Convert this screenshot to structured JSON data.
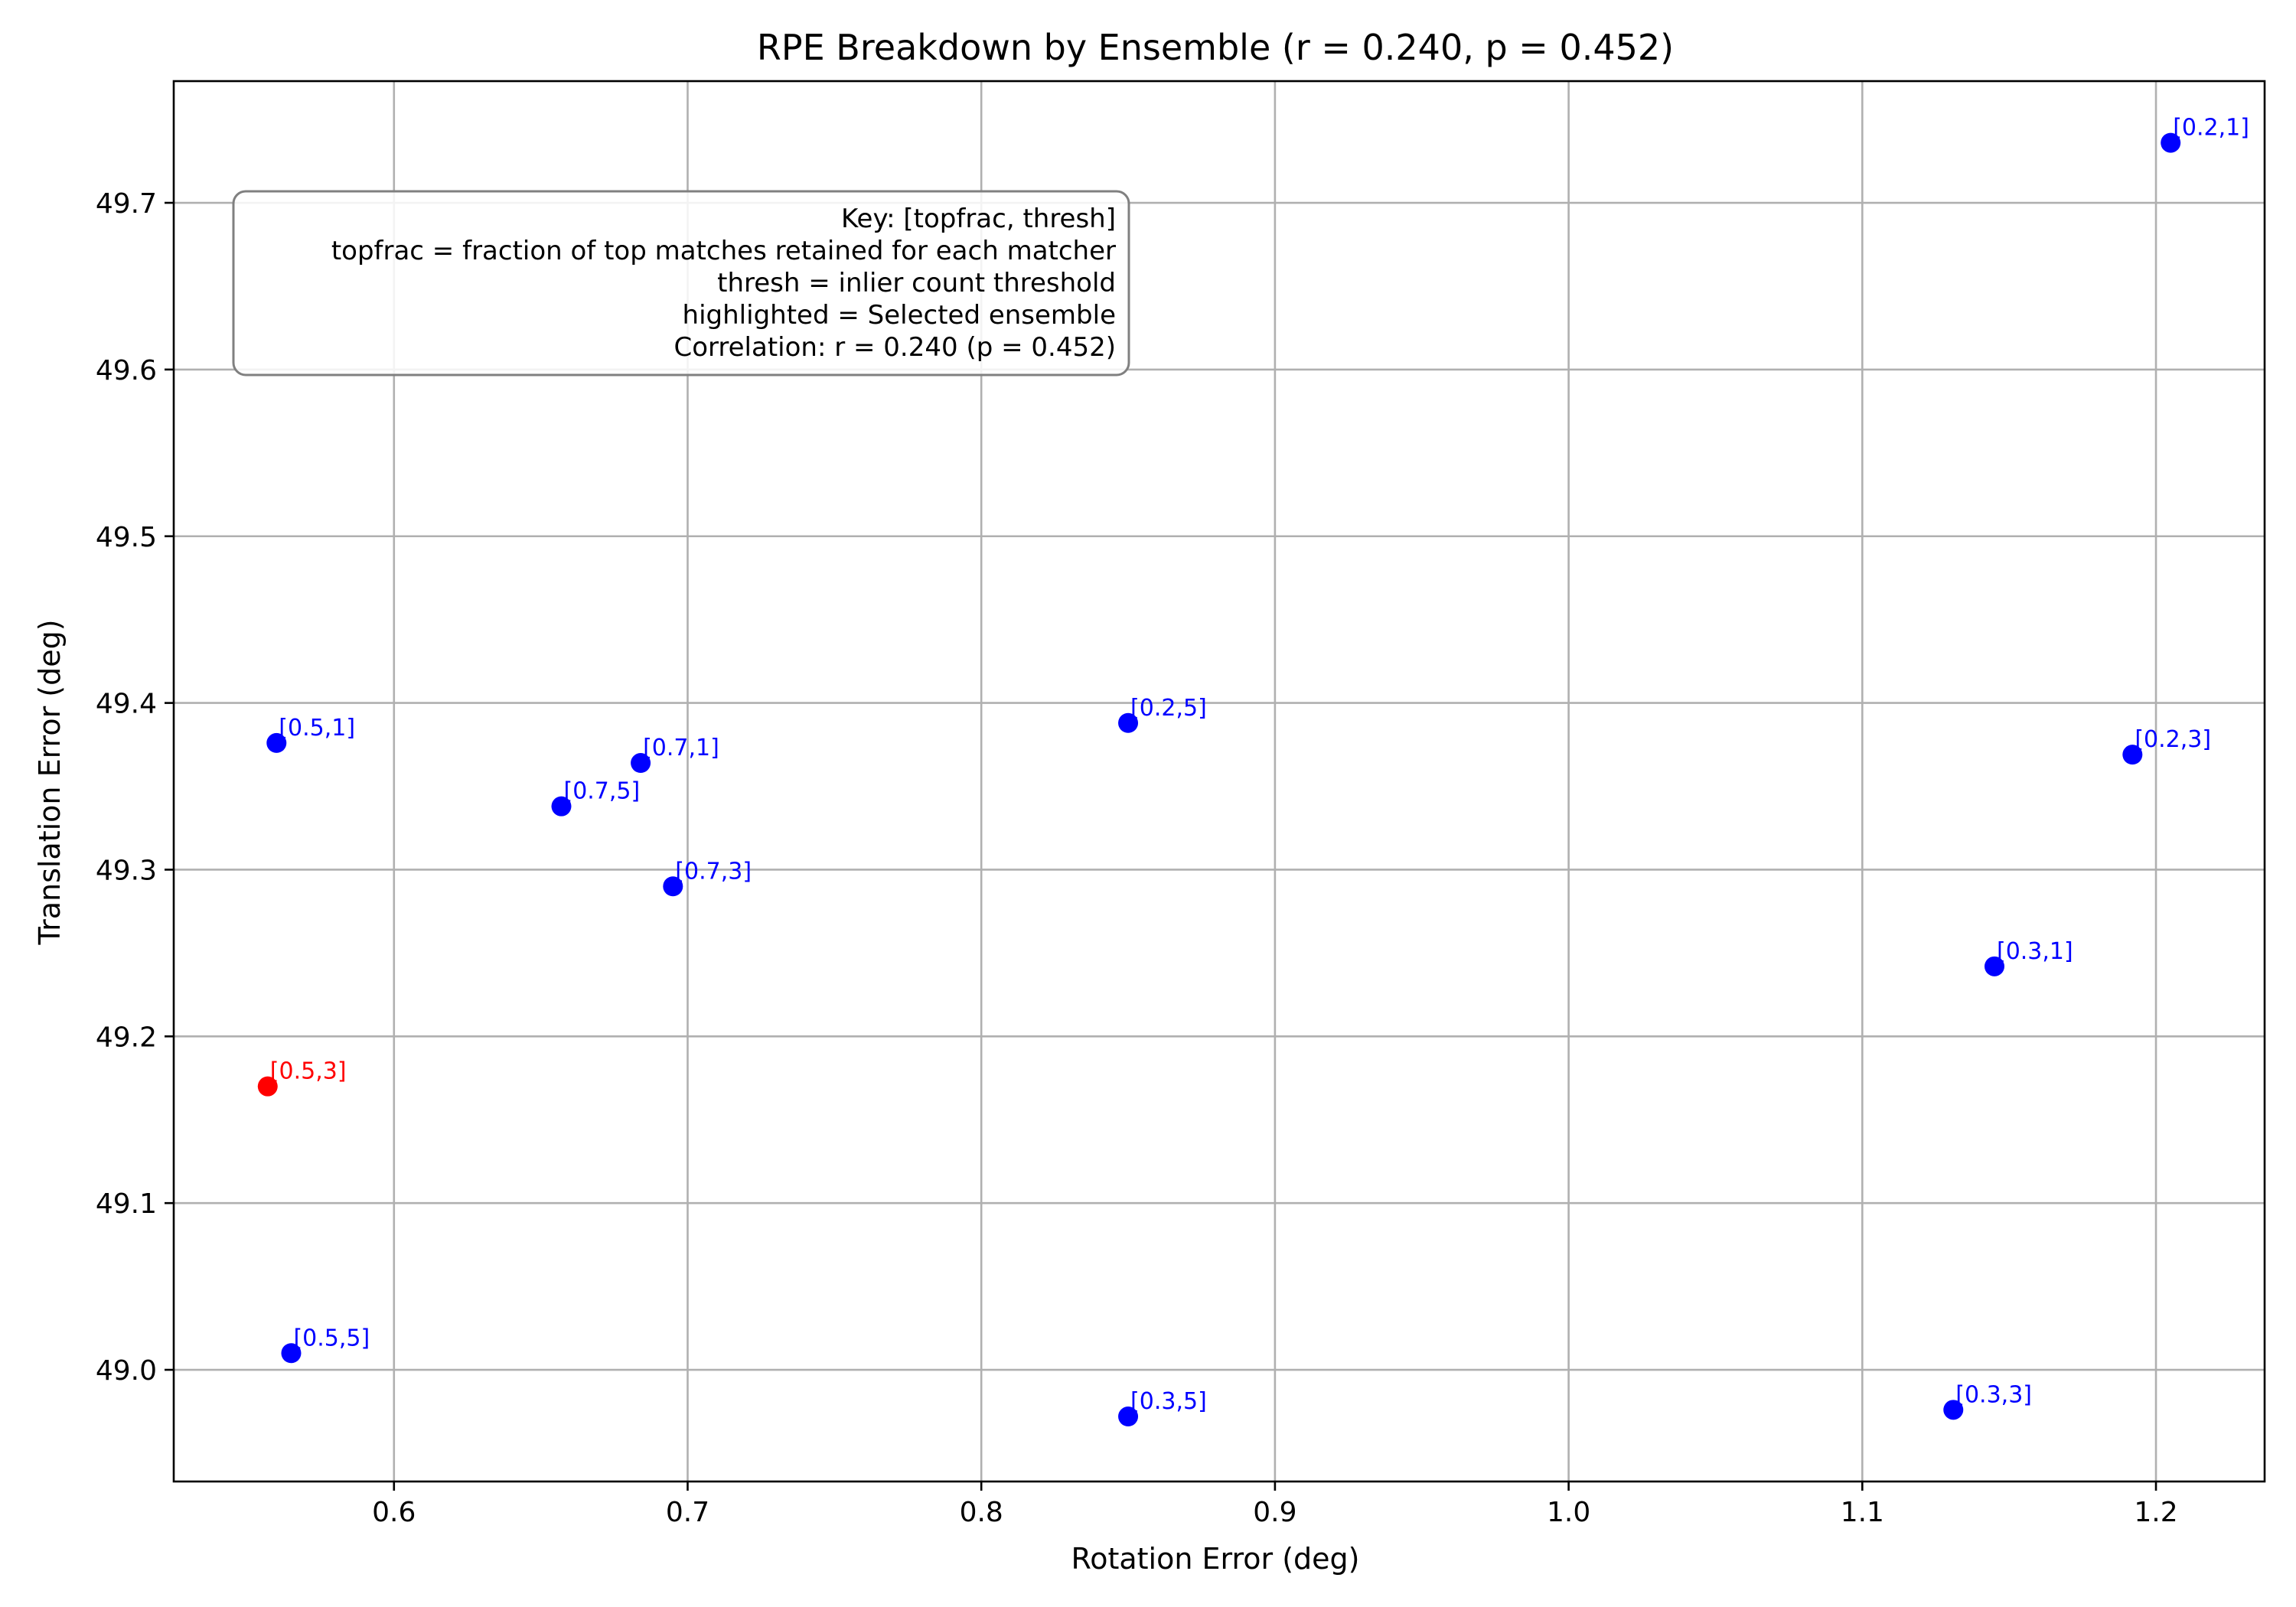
{
  "chart_data": {
    "type": "scatter",
    "title": "RPE Breakdown by Ensemble (r = 0.240, p = 0.452)",
    "xlabel": "Rotation Error (deg)",
    "ylabel": "Translation Error (deg)",
    "xlim": [
      0.525,
      1.237
    ],
    "ylim": [
      48.933,
      49.773
    ],
    "xticks": [
      0.6,
      0.7,
      0.8,
      0.9,
      1.0,
      1.1,
      1.2
    ],
    "yticks": [
      49.0,
      49.1,
      49.2,
      49.3,
      49.4,
      49.5,
      49.6,
      49.7
    ],
    "xtick_labels": [
      "0.6",
      "0.7",
      "0.8",
      "0.9",
      "1.0",
      "1.1",
      "1.2"
    ],
    "ytick_labels": [
      "49.0",
      "49.1",
      "49.2",
      "49.3",
      "49.4",
      "49.5",
      "49.6",
      "49.7"
    ],
    "grid": true,
    "points": [
      {
        "label": "[0.2,1]",
        "x": 1.205,
        "y": 49.736,
        "highlighted": false
      },
      {
        "label": "[0.5,1]",
        "x": 0.56,
        "y": 49.376,
        "highlighted": false
      },
      {
        "label": "[0.7,1]",
        "x": 0.684,
        "y": 49.364,
        "highlighted": false
      },
      {
        "label": "[0.2,5]",
        "x": 0.85,
        "y": 49.388,
        "highlighted": false
      },
      {
        "label": "[0.2,3]",
        "x": 1.192,
        "y": 49.369,
        "highlighted": false
      },
      {
        "label": "[0.7,5]",
        "x": 0.657,
        "y": 49.338,
        "highlighted": false
      },
      {
        "label": "[0.7,3]",
        "x": 0.695,
        "y": 49.29,
        "highlighted": false
      },
      {
        "label": "[0.3,1]",
        "x": 1.145,
        "y": 49.242,
        "highlighted": false
      },
      {
        "label": "[0.5,3]",
        "x": 0.557,
        "y": 49.17,
        "highlighted": true
      },
      {
        "label": "[0.5,5]",
        "x": 0.565,
        "y": 49.01,
        "highlighted": false
      },
      {
        "label": "[0.3,5]",
        "x": 0.85,
        "y": 48.972,
        "highlighted": false
      },
      {
        "label": "[0.3,3]",
        "x": 1.131,
        "y": 48.976,
        "highlighted": false
      }
    ],
    "annotation_box": {
      "lines": [
        "Key: [topfrac, thresh]",
        "topfrac = fraction of top matches retained for each matcher",
        "thresh = inlier count threshold",
        "highlighted = Selected ensemble",
        "Correlation: r = 0.240 (p = 0.452)"
      ]
    },
    "colors": {
      "normal": "#0000ff",
      "highlighted": "#ff0000",
      "grid": "#b0b0b0",
      "box_edge": "#808080"
    }
  }
}
